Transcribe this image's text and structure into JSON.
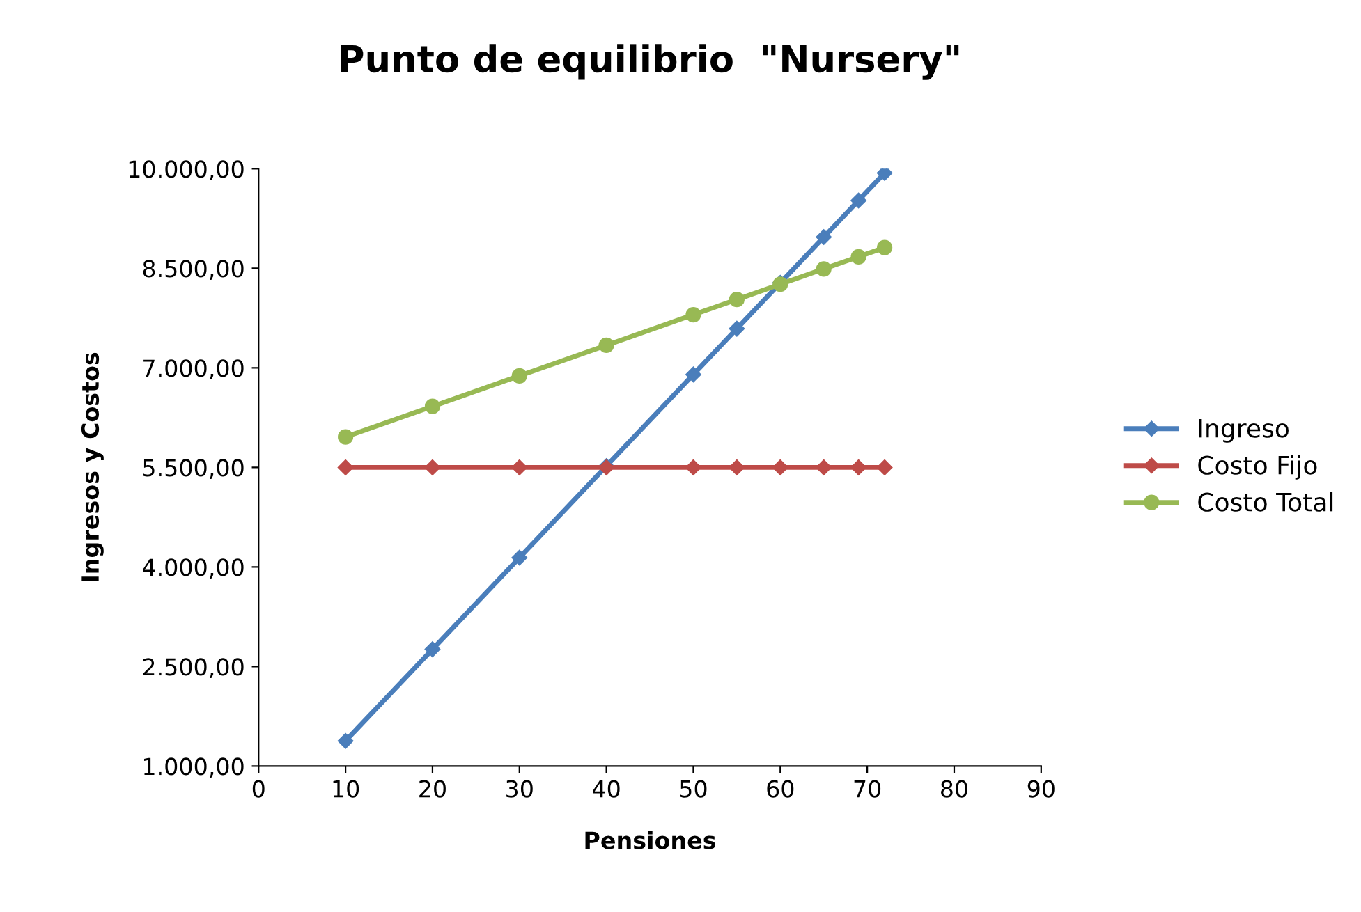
{
  "chart_data": {
    "type": "line",
    "title": "Punto de equilibrio  \"Nursery\"",
    "xlabel": "Pensiones",
    "ylabel": "Ingresos y Costos",
    "x": [
      10,
      20,
      30,
      40,
      50,
      55,
      60,
      65,
      69,
      72
    ],
    "series": [
      {
        "name": "Ingreso",
        "color": "#4a7ebb",
        "marker": "diamond",
        "values": [
          1380,
          2760,
          4140,
          5520,
          6900,
          7590,
          8280,
          8970,
          9522,
          9936
        ]
      },
      {
        "name": "Costo Fijo",
        "color": "#be4b48",
        "marker": "diamond",
        "values": [
          5500,
          5500,
          5500,
          5500,
          5500,
          5500,
          5500,
          5500,
          5500,
          5500
        ]
      },
      {
        "name": "Costo Total",
        "color": "#98b954",
        "marker": "circle",
        "values": [
          5960,
          6420,
          6880,
          7340,
          7800,
          8030,
          8260,
          8490,
          8674,
          8812
        ]
      }
    ],
    "xlim": [
      0,
      90
    ],
    "xticks": [
      0,
      10,
      20,
      30,
      40,
      50,
      60,
      70,
      80,
      90
    ],
    "ylim": [
      1000,
      10000
    ],
    "yticks": [
      {
        "value": 1000,
        "label": "1.000,00"
      },
      {
        "value": 2500,
        "label": "2.500,00"
      },
      {
        "value": 4000,
        "label": "4.000,00"
      },
      {
        "value": 5500,
        "label": "5.500,00"
      },
      {
        "value": 7000,
        "label": "7.000,00"
      },
      {
        "value": 8500,
        "label": "8.500,00"
      },
      {
        "value": 10000,
        "label": "10.000,00"
      }
    ],
    "grid": false,
    "legend": "right",
    "line_style": "solid"
  }
}
